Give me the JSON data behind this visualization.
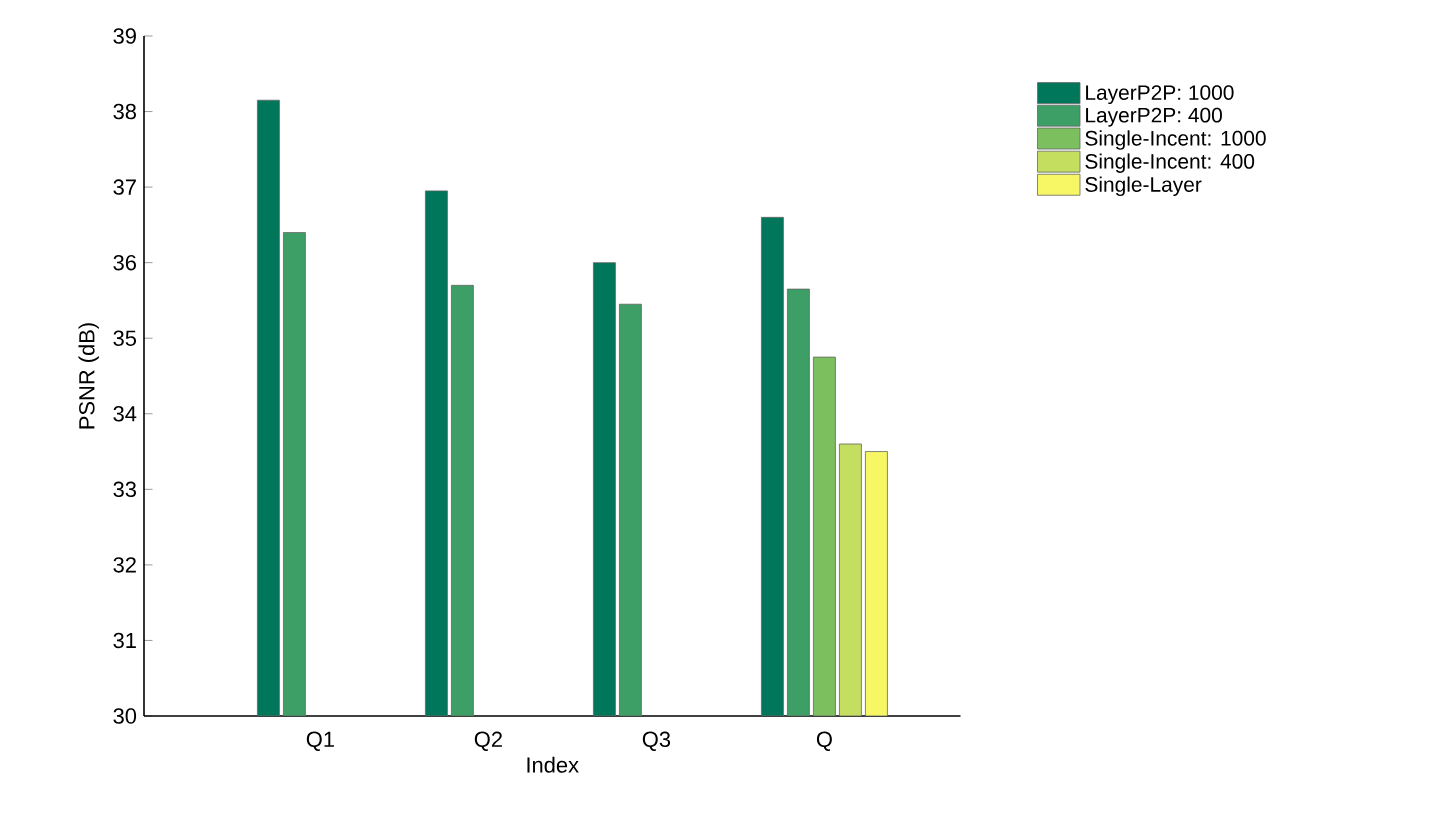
{
  "chart_data": {
    "type": "bar",
    "xlabel": "Index",
    "ylabel": "PSNR (dB)",
    "categories": [
      "Q1",
      "Q2",
      "Q3",
      "Q"
    ],
    "series": [
      {
        "name": "LayerP2P: 1000",
        "color": "#00765a",
        "values": [
          38.15,
          36.95,
          36.0,
          36.6
        ]
      },
      {
        "name": "LayerP2P: 400",
        "color": "#3d9e66",
        "values": [
          36.4,
          35.7,
          35.45,
          35.65
        ]
      },
      {
        "name": "Single-Incent: 1000",
        "color": "#7bbf5f",
        "values": [
          null,
          null,
          null,
          34.75
        ]
      },
      {
        "name": "Single-Incent: 400",
        "color": "#c4df60",
        "values": [
          null,
          null,
          null,
          33.6
        ]
      },
      {
        "name": "Single-Layer",
        "color": "#f7f766",
        "values": [
          null,
          null,
          null,
          33.5
        ]
      }
    ],
    "ylim": [
      30,
      39
    ],
    "yticks": [
      30,
      31,
      32,
      33,
      34,
      35,
      36,
      37,
      38,
      39
    ],
    "legend": "top right",
    "grid": false
  }
}
